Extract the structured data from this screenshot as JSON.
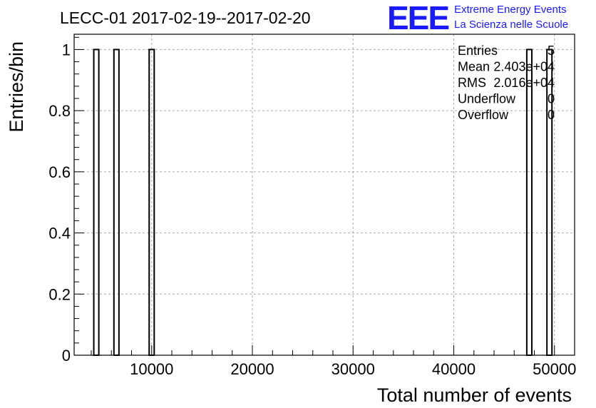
{
  "header": {
    "title": "LECC-01 2017-02-19--2017-02-20"
  },
  "logo": {
    "mark": "EEE",
    "line1": "Extreme Energy Events",
    "line2": "La Scienza nelle Scuole",
    "color": "#1a1aff"
  },
  "stats": [
    {
      "label": "Entries",
      "value": "5"
    },
    {
      "label": "Mean",
      "value": "2.403e+04"
    },
    {
      "label": "RMS",
      "value": "2.016e+04"
    },
    {
      "label": "Underflow",
      "value": "0"
    },
    {
      "label": "Overflow",
      "value": "0"
    }
  ],
  "chart_data": {
    "type": "bar",
    "title": "LECC-01 2017-02-19--2017-02-20",
    "xlabel": "Total number of events",
    "ylabel": "Entries/bin",
    "xlim": [
      2300,
      52000
    ],
    "ylim": [
      0,
      1.05
    ],
    "grid": true,
    "xticks": [
      10000,
      20000,
      30000,
      40000,
      50000
    ],
    "xtick_labels": [
      "10000",
      "20000",
      "30000",
      "40000",
      "50000"
    ],
    "yticks": [
      0,
      0.2,
      0.4,
      0.6,
      0.8,
      1
    ],
    "ytick_labels": [
      "0",
      "0.2",
      "0.4",
      "0.6",
      "0.8",
      "1"
    ],
    "bin_width": 500,
    "bins": [
      {
        "x": 4500,
        "count": 1
      },
      {
        "x": 6500,
        "count": 1
      },
      {
        "x": 10000,
        "count": 1
      },
      {
        "x": 47500,
        "count": 1
      },
      {
        "x": 49500,
        "count": 1
      }
    ],
    "line_color": "#000000"
  }
}
